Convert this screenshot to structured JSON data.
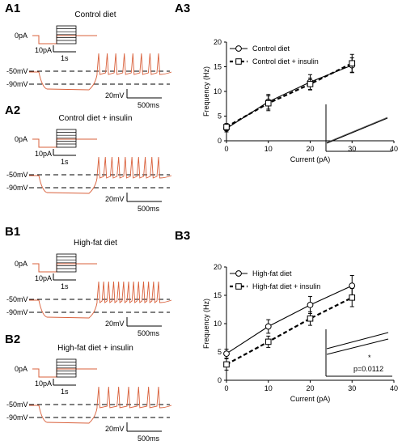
{
  "panels": {
    "A1": "A1",
    "A2": "A2",
    "A3": "A3",
    "B1": "B1",
    "B2": "B2",
    "B3": "B3"
  },
  "traces": {
    "A1": {
      "title": "Control diet",
      "zero_label": "0pA",
      "current_scale": "10pA",
      "time_scale_protocol": "1s",
      "v1": "-50mV",
      "v2": "-90mV",
      "voltage_scale": "20mV",
      "time_scale": "500ms",
      "spikes": 8
    },
    "A2": {
      "title": "Control diet + insulin",
      "zero_label": "0pA",
      "current_scale": "10pA",
      "time_scale_protocol": "1s",
      "v1": "-50mV",
      "v2": "-90mV",
      "voltage_scale": "20mV",
      "time_scale": "500ms",
      "spikes": 10
    },
    "B1": {
      "title": "High-fat diet",
      "zero_label": "0pA",
      "current_scale": "10pA",
      "time_scale_protocol": "1s",
      "v1": "-50mV",
      "v2": "-90mV",
      "voltage_scale": "20mV",
      "time_scale": "500ms",
      "spikes": 13
    },
    "B2": {
      "title": "High-fat diet + insulin",
      "zero_label": "0pA",
      "current_scale": "10pA",
      "time_scale_protocol": "1s",
      "v1": "-50mV",
      "v2": "-90mV",
      "voltage_scale": "20mV",
      "time_scale": "500ms",
      "spikes": 7
    }
  },
  "colors": {
    "trace": "#d9603b",
    "protocol": "#d9603b"
  },
  "chart_data": [
    {
      "type": "line",
      "panel": "A3",
      "xlabel": "Current (pA)",
      "ylabel": "Frequency (Hz)",
      "xlim": [
        0,
        40
      ],
      "ylim": [
        0,
        20
      ],
      "xticks": [
        0,
        10,
        20,
        30,
        40
      ],
      "yticks": [
        0,
        5,
        10,
        15,
        20
      ],
      "x": [
        0,
        10,
        20,
        30
      ],
      "series": [
        {
          "name": "Control diet",
          "values": [
            2.5,
            7.9,
            11.9,
            15.3
          ],
          "err": [
            0.7,
            1.5,
            1.5,
            1.5
          ],
          "marker": "circle",
          "line": "solid"
        },
        {
          "name": "Control diet + insulin",
          "values": [
            2.8,
            7.6,
            11.5,
            15.7
          ],
          "err": [
            0.7,
            1.5,
            1.2,
            1.8
          ],
          "marker": "square",
          "line": "dashed"
        }
      ],
      "inset": {
        "annotation": ""
      },
      "legend": "top-left"
    },
    {
      "type": "line",
      "panel": "B3",
      "xlabel": "Current (pA)",
      "ylabel": "Frequency (Hz)",
      "xlim": [
        0,
        40
      ],
      "ylim": [
        0,
        20
      ],
      "xticks": [
        0,
        10,
        20,
        30,
        40
      ],
      "yticks": [
        0,
        5,
        10,
        15,
        20
      ],
      "x": [
        0,
        10,
        20,
        30
      ],
      "series": [
        {
          "name": "High-fat diet",
          "values": [
            4.7,
            9.5,
            13.3,
            16.7
          ],
          "err": [
            0.8,
            1.2,
            1.5,
            1.8
          ],
          "marker": "circle",
          "line": "solid"
        },
        {
          "name": "High-fat diet + insulin",
          "values": [
            2.8,
            6.8,
            10.9,
            14.6
          ],
          "err": [
            1.0,
            1.0,
            1.2,
            1.6
          ],
          "marker": "square",
          "line": "dashed"
        }
      ],
      "inset": {
        "star": "*",
        "annotation": "p=0.0112"
      },
      "legend": "top-left"
    }
  ]
}
